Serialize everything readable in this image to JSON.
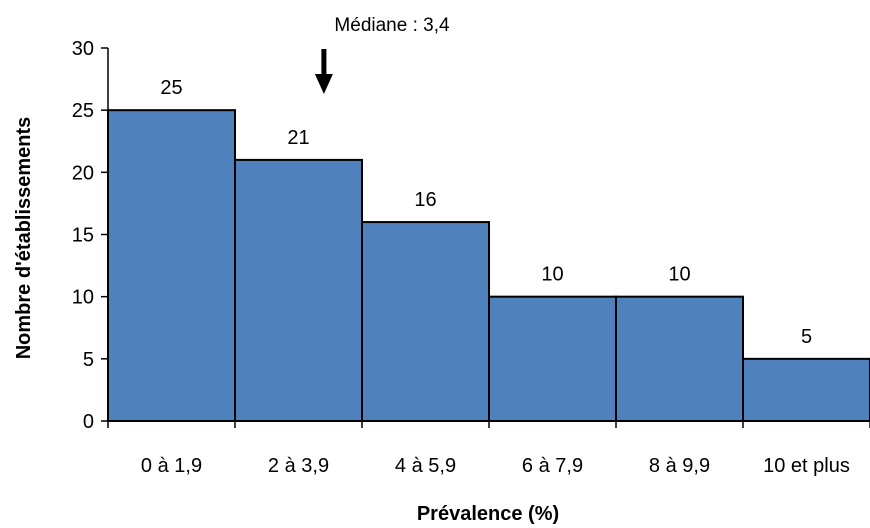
{
  "chart_data": {
    "type": "bar",
    "title": "",
    "xlabel": "Prévalence (%)",
    "ylabel": "Nombre d'établissements",
    "categories": [
      "0 à 1,9",
      "2 à 3,9",
      "4 à 5,9",
      "6 à 7,9",
      "8 à 9,9",
      "10 et plus"
    ],
    "values": [
      25,
      21,
      16,
      10,
      10,
      5
    ],
    "data_labels": [
      "25",
      "21",
      "16",
      "10",
      "10",
      "5"
    ],
    "ylim": [
      0,
      30
    ],
    "yticks": [
      0,
      5,
      10,
      15,
      20,
      25,
      30
    ],
    "grid": false,
    "legend": "none",
    "annotation": {
      "text": "Médiane : 3,4",
      "value": 3.4
    },
    "colors": {
      "bar_fill": "#4f81bd",
      "bar_stroke": "#000000",
      "axis": "#000000"
    }
  }
}
